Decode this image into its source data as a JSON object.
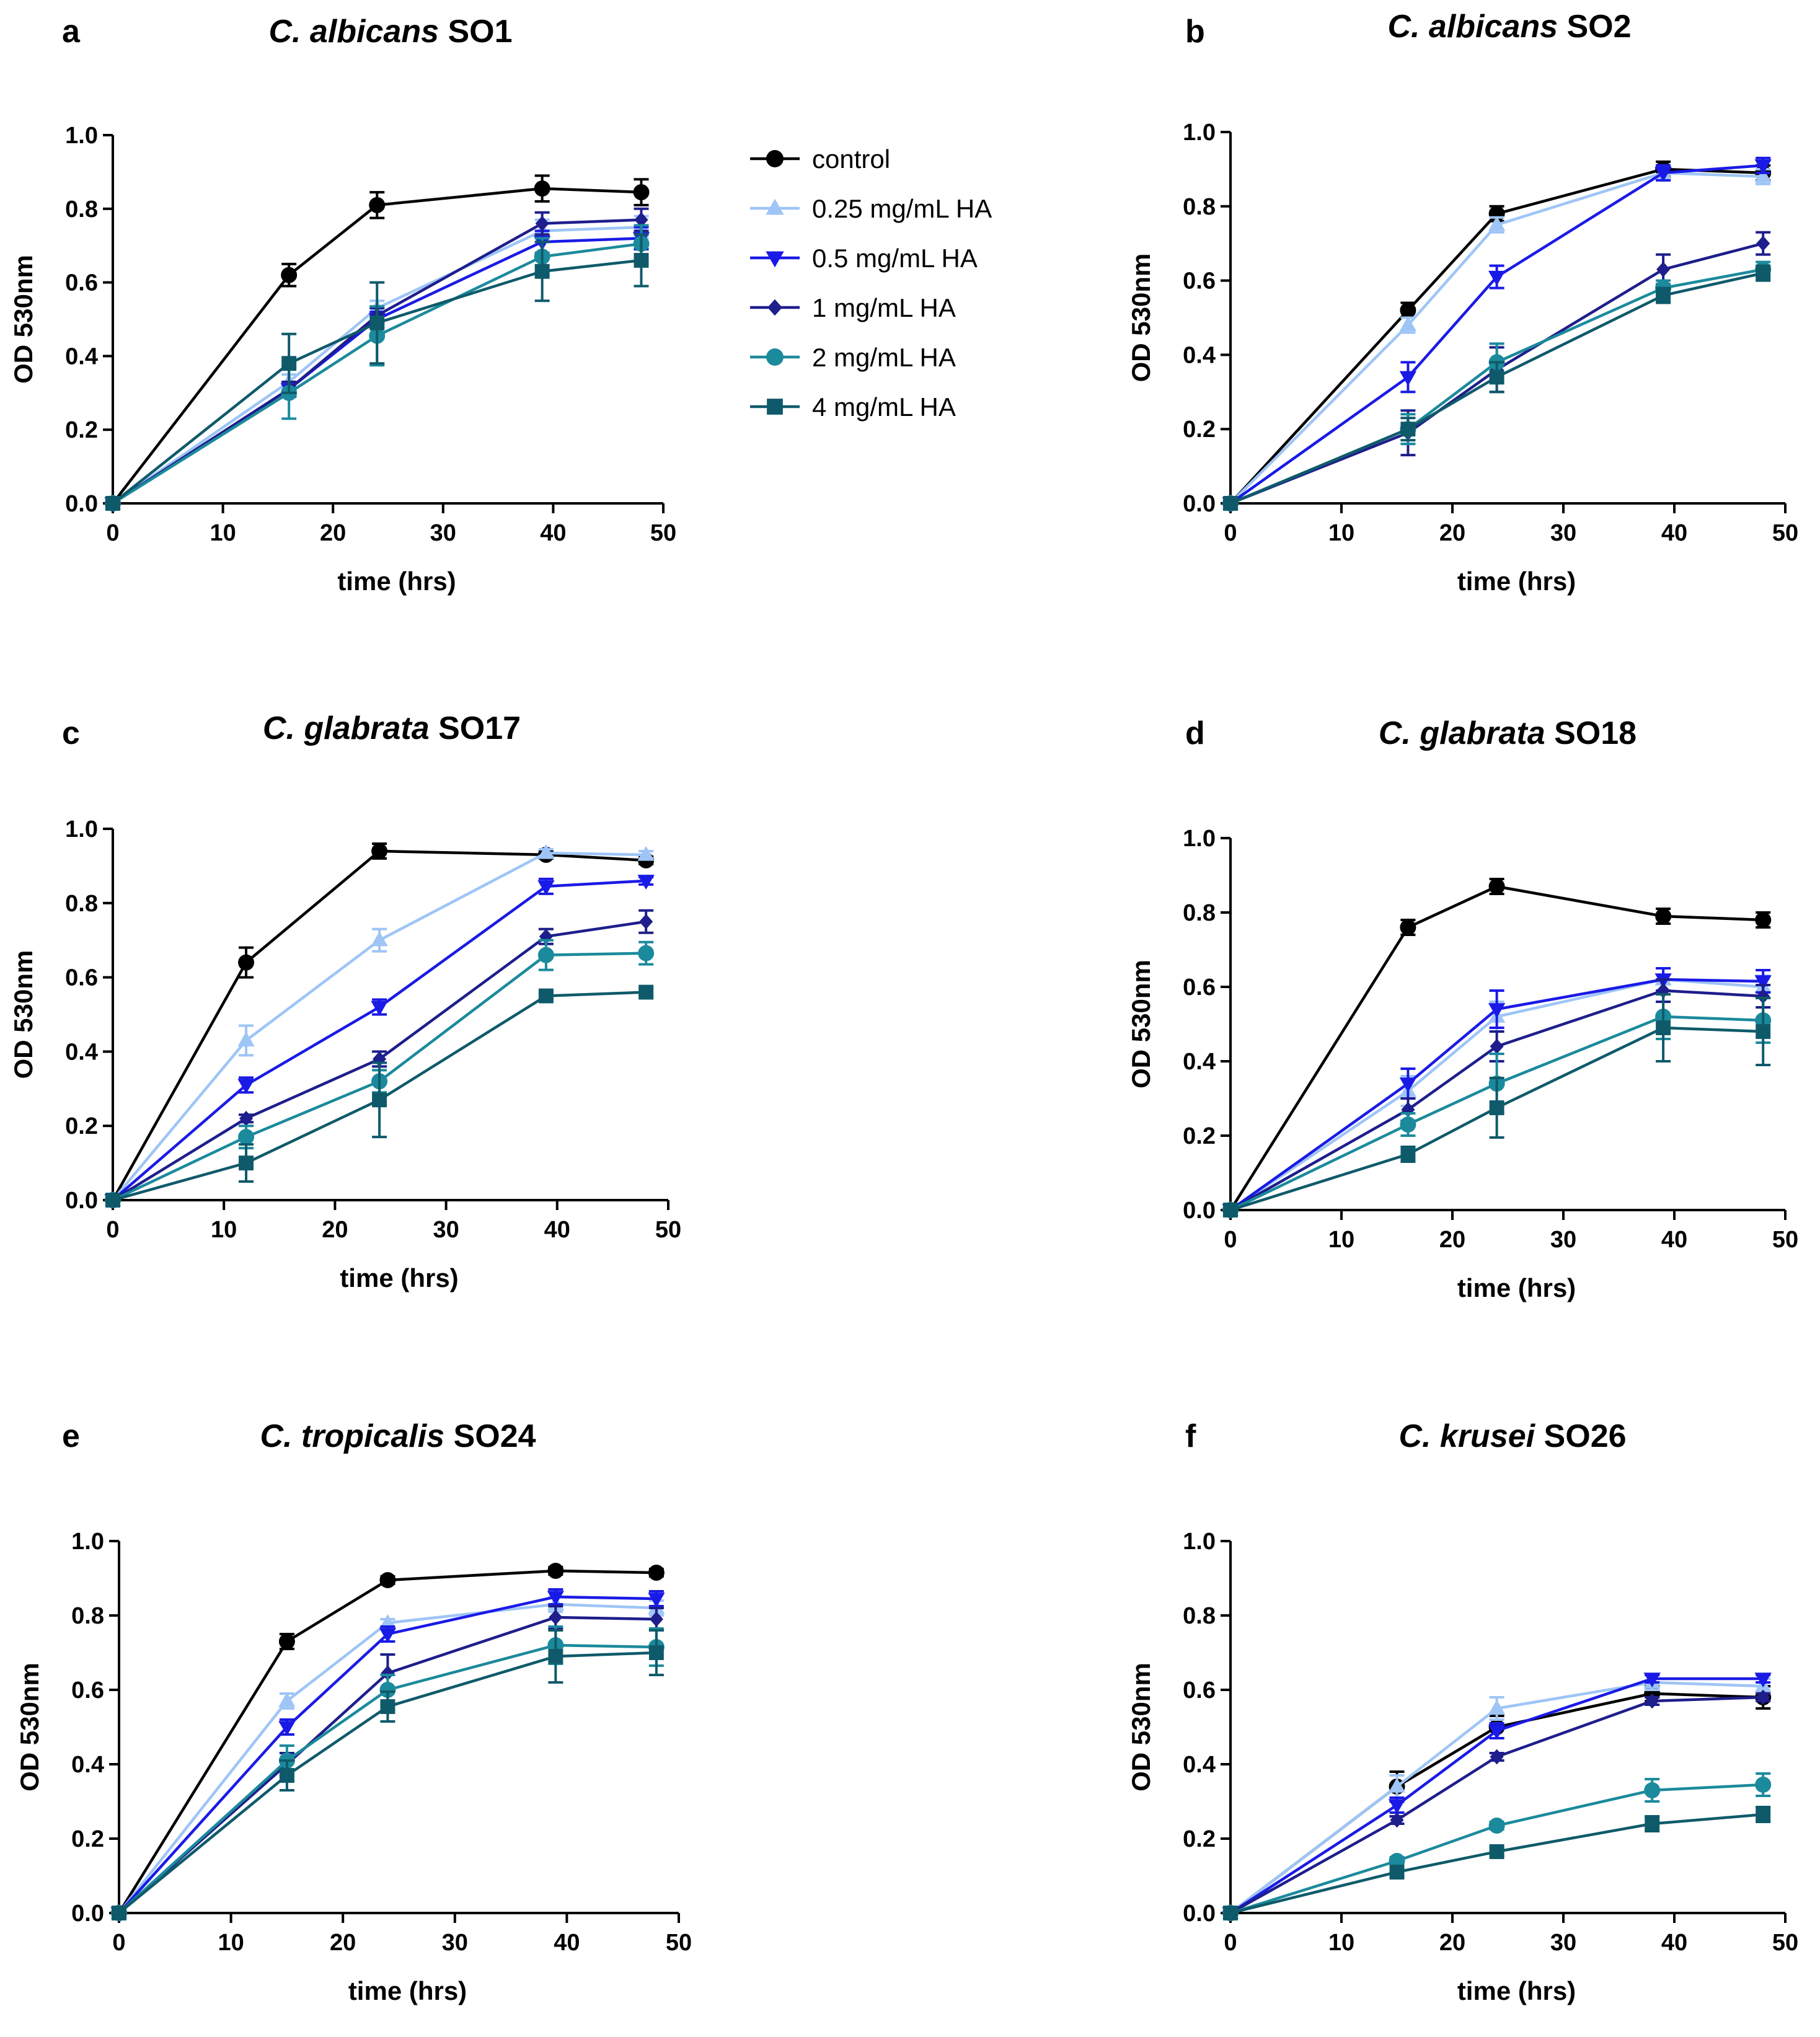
{
  "figure": {
    "legend": {
      "entries": [
        {
          "label": "control",
          "color": "#000000",
          "marker": "circle"
        },
        {
          "label": "0.25 mg/mL HA",
          "color": "#9ec5f6",
          "marker": "triangle-up"
        },
        {
          "label": "0.5 mg/mL HA",
          "color": "#1a1ae6",
          "marker": "triangle-down"
        },
        {
          "label": "1 mg/mL HA",
          "color": "#1e1e8c",
          "marker": "diamond"
        },
        {
          "label": "2 mg/mL HA",
          "color": "#1b8a9c",
          "marker": "circle"
        },
        {
          "label": "4 mg/mL HA",
          "color": "#0f5a6a",
          "marker": "square"
        }
      ]
    }
  },
  "chart_data": [
    {
      "id": "a",
      "type": "line",
      "letter": "a",
      "title_italic": "C. albicans",
      "title_rest": " SO1",
      "xlabel": "time (hrs)",
      "ylabel": "OD 530nm",
      "xlim": [
        0,
        50
      ],
      "ylim": [
        0,
        1.0
      ],
      "xticks": [
        "0",
        "10",
        "20",
        "30",
        "40",
        "50"
      ],
      "yticks": [
        "0.0",
        "0.2",
        "0.4",
        "0.6",
        "0.8",
        "1.0"
      ],
      "x": [
        0,
        16,
        24,
        39,
        48
      ],
      "series": [
        {
          "name": "control",
          "values": [
            0,
            0.62,
            0.81,
            0.855,
            0.845
          ],
          "err": [
            0,
            0.03,
            0.035,
            0.035,
            0.035
          ]
        },
        {
          "name": "0.25 mg/mL HA",
          "values": [
            0,
            0.33,
            0.53,
            0.74,
            0.75
          ],
          "err": [
            0,
            0.02,
            0.02,
            0.03,
            0.03
          ]
        },
        {
          "name": "0.5 mg/mL HA",
          "values": [
            0,
            0.31,
            0.5,
            0.71,
            0.72
          ],
          "err": [
            0,
            0.02,
            0.02,
            0.03,
            0.03
          ]
        },
        {
          "name": "1 mg/mL HA",
          "values": [
            0,
            0.31,
            0.51,
            0.76,
            0.77
          ],
          "err": [
            0,
            0.02,
            0.02,
            0.03,
            0.03
          ]
        },
        {
          "name": "2 mg/mL HA",
          "values": [
            0,
            0.3,
            0.455,
            0.67,
            0.705
          ],
          "err": [
            0,
            0.07,
            0.08,
            0.05,
            0.05
          ]
        },
        {
          "name": "4 mg/mL HA",
          "values": [
            0,
            0.38,
            0.49,
            0.63,
            0.66
          ],
          "err": [
            0,
            0.08,
            0.11,
            0.08,
            0.07
          ]
        }
      ]
    },
    {
      "id": "b",
      "type": "line",
      "letter": "b",
      "title_italic": "C. albicans",
      "title_rest": " SO2",
      "xlabel": "time (hrs)",
      "ylabel": "OD 530nm",
      "xlim": [
        0,
        50
      ],
      "ylim": [
        0,
        1.0
      ],
      "xticks": [
        "0",
        "10",
        "20",
        "30",
        "40",
        "50"
      ],
      "yticks": [
        "0.0",
        "0.2",
        "0.4",
        "0.6",
        "0.8",
        "1.0"
      ],
      "x": [
        0,
        16,
        24,
        39,
        48
      ],
      "series": [
        {
          "name": "control",
          "values": [
            0,
            0.52,
            0.78,
            0.9,
            0.89
          ],
          "err": [
            0,
            0.02,
            0.02,
            0.02,
            0.02
          ]
        },
        {
          "name": "0.25 mg/mL HA",
          "values": [
            0,
            0.48,
            0.75,
            0.89,
            0.88
          ],
          "err": [
            0,
            0.02,
            0.02,
            0.02,
            0.02
          ]
        },
        {
          "name": "0.5 mg/mL HA",
          "values": [
            0,
            0.34,
            0.61,
            0.89,
            0.91
          ],
          "err": [
            0,
            0.04,
            0.03,
            0.02,
            0.02
          ]
        },
        {
          "name": "1 mg/mL HA",
          "values": [
            0,
            0.19,
            0.36,
            0.63,
            0.7
          ],
          "err": [
            0,
            0.06,
            0.06,
            0.04,
            0.03
          ]
        },
        {
          "name": "2 mg/mL HA",
          "values": [
            0,
            0.2,
            0.38,
            0.58,
            0.63
          ],
          "err": [
            0,
            0.04,
            0.05,
            0.02,
            0.02
          ]
        },
        {
          "name": "4 mg/mL HA",
          "values": [
            0,
            0.2,
            0.34,
            0.56,
            0.62
          ],
          "err": [
            0,
            0.03,
            0.04,
            0.02,
            0.02
          ]
        }
      ]
    },
    {
      "id": "c",
      "type": "line",
      "letter": "c",
      "title_italic": "C. glabrata",
      "title_rest": " SO17",
      "xlabel": "time (hrs)",
      "ylabel": "OD 530nm",
      "xlim": [
        0,
        50
      ],
      "ylim": [
        0,
        1.0
      ],
      "xticks": [
        "0",
        "10",
        "20",
        "30",
        "40",
        "50"
      ],
      "yticks": [
        "0.0",
        "0.2",
        "0.4",
        "0.6",
        "0.8",
        "1.0"
      ],
      "x": [
        0,
        12,
        24,
        39,
        48
      ],
      "series": [
        {
          "name": "control",
          "values": [
            0,
            0.64,
            0.94,
            0.93,
            0.915
          ],
          "err": [
            0,
            0.04,
            0.02,
            0.01,
            0.01
          ]
        },
        {
          "name": "0.25 mg/mL HA",
          "values": [
            0,
            0.43,
            0.7,
            0.935,
            0.93
          ],
          "err": [
            0,
            0.04,
            0.03,
            0.01,
            0.01
          ]
        },
        {
          "name": "0.5 mg/mL HA",
          "values": [
            0,
            0.31,
            0.52,
            0.845,
            0.86
          ],
          "err": [
            0,
            0.02,
            0.02,
            0.02,
            0.01
          ]
        },
        {
          "name": "1 mg/mL HA",
          "values": [
            0,
            0.22,
            0.38,
            0.71,
            0.75
          ],
          "err": [
            0,
            0.01,
            0.02,
            0.02,
            0.03
          ]
        },
        {
          "name": "2 mg/mL HA",
          "values": [
            0,
            0.17,
            0.32,
            0.66,
            0.665
          ],
          "err": [
            0,
            0.03,
            0.03,
            0.04,
            0.03
          ]
        },
        {
          "name": "4 mg/mL HA",
          "values": [
            0,
            0.1,
            0.27,
            0.55,
            0.56
          ],
          "err": [
            0,
            0.05,
            0.1,
            0.01,
            0.01
          ]
        }
      ]
    },
    {
      "id": "d",
      "type": "line",
      "letter": "d",
      "title_italic": "C. glabrata",
      "title_rest": " SO18",
      "xlabel": "time (hrs)",
      "ylabel": "OD 530nm",
      "xlim": [
        0,
        50
      ],
      "ylim": [
        0,
        1.0
      ],
      "xticks": [
        "0",
        "10",
        "20",
        "30",
        "40",
        "50"
      ],
      "yticks": [
        "0.0",
        "0.2",
        "0.4",
        "0.6",
        "0.8",
        "1.0"
      ],
      "x": [
        0,
        16,
        24,
        39,
        48
      ],
      "series": [
        {
          "name": "control",
          "values": [
            0,
            0.76,
            0.87,
            0.79,
            0.78
          ],
          "err": [
            0,
            0.02,
            0.02,
            0.02,
            0.02
          ]
        },
        {
          "name": "0.25 mg/mL HA",
          "values": [
            0,
            0.32,
            0.52,
            0.62,
            0.6
          ],
          "err": [
            0,
            0.04,
            0.04,
            0.03,
            0.03
          ]
        },
        {
          "name": "0.5 mg/mL HA",
          "values": [
            0,
            0.34,
            0.54,
            0.62,
            0.615
          ],
          "err": [
            0,
            0.04,
            0.05,
            0.03,
            0.03
          ]
        },
        {
          "name": "1 mg/mL HA",
          "values": [
            0,
            0.27,
            0.44,
            0.59,
            0.575
          ],
          "err": [
            0,
            0.03,
            0.04,
            0.03,
            0.03
          ]
        },
        {
          "name": "2 mg/mL HA",
          "values": [
            0,
            0.23,
            0.34,
            0.52,
            0.51
          ],
          "err": [
            0,
            0.03,
            0.08,
            0.06,
            0.06
          ]
        },
        {
          "name": "4 mg/mL HA",
          "values": [
            0,
            0.15,
            0.275,
            0.49,
            0.48
          ],
          "err": [
            0,
            0.02,
            0.08,
            0.09,
            0.09
          ]
        }
      ]
    },
    {
      "id": "e",
      "type": "line",
      "letter": "e",
      "title_italic": "C. tropicalis",
      "title_rest": " SO24",
      "xlabel": "time (hrs)",
      "ylabel": "OD 530nm",
      "xlim": [
        0,
        50
      ],
      "ylim": [
        0,
        1.0
      ],
      "xticks": [
        "0",
        "10",
        "20",
        "30",
        "40",
        "50"
      ],
      "yticks": [
        "0.0",
        "0.2",
        "0.4",
        "0.6",
        "0.8",
        "1.0"
      ],
      "x": [
        0,
        15,
        24,
        39,
        48
      ],
      "series": [
        {
          "name": "control",
          "values": [
            0,
            0.73,
            0.895,
            0.92,
            0.915
          ],
          "err": [
            0,
            0.02,
            0.01,
            0.01,
            0.01
          ]
        },
        {
          "name": "0.25 mg/mL HA",
          "values": [
            0,
            0.57,
            0.78,
            0.83,
            0.82
          ],
          "err": [
            0,
            0.02,
            0.01,
            0.02,
            0.02
          ]
        },
        {
          "name": "0.5 mg/mL HA",
          "values": [
            0,
            0.5,
            0.75,
            0.85,
            0.845
          ],
          "err": [
            0,
            0.02,
            0.02,
            0.02,
            0.02
          ]
        },
        {
          "name": "1 mg/mL HA",
          "values": [
            0,
            0.4,
            0.645,
            0.795,
            0.79
          ],
          "err": [
            0,
            0.03,
            0.05,
            0.03,
            0.03
          ]
        },
        {
          "name": "2 mg/mL HA",
          "values": [
            0,
            0.41,
            0.6,
            0.72,
            0.715
          ],
          "err": [
            0,
            0.04,
            0.04,
            0.05,
            0.05
          ]
        },
        {
          "name": "4 mg/mL HA",
          "values": [
            0,
            0.37,
            0.555,
            0.69,
            0.7
          ],
          "err": [
            0,
            0.04,
            0.04,
            0.07,
            0.06
          ]
        }
      ]
    },
    {
      "id": "f",
      "type": "line",
      "letter": "f",
      "title_italic": "C. krusei",
      "title_rest": " SO26",
      "xlabel": "time (hrs)",
      "ylabel": "OD 530nm",
      "xlim": [
        0,
        50
      ],
      "ylim": [
        0,
        1.0
      ],
      "xticks": [
        "0",
        "10",
        "20",
        "30",
        "40",
        "50"
      ],
      "yticks": [
        "0.0",
        "0.2",
        "0.4",
        "0.6",
        "0.8",
        "1.0"
      ],
      "x": [
        0,
        15,
        24,
        38,
        48
      ],
      "series": [
        {
          "name": "control",
          "values": [
            0,
            0.34,
            0.5,
            0.59,
            0.58
          ],
          "err": [
            0,
            0.04,
            0.03,
            0.02,
            0.03
          ]
        },
        {
          "name": "0.25 mg/mL HA",
          "values": [
            0,
            0.34,
            0.55,
            0.62,
            0.61
          ],
          "err": [
            0,
            0.03,
            0.03,
            0.02,
            0.02
          ]
        },
        {
          "name": "0.5 mg/mL HA",
          "values": [
            0,
            0.29,
            0.49,
            0.63,
            0.63
          ],
          "err": [
            0,
            0.02,
            0.02,
            0.01,
            0.01
          ]
        },
        {
          "name": "1 mg/mL HA",
          "values": [
            0,
            0.25,
            0.42,
            0.57,
            0.58
          ],
          "err": [
            0,
            0.01,
            0.01,
            0.01,
            0.01
          ]
        },
        {
          "name": "2 mg/mL HA",
          "values": [
            0,
            0.14,
            0.235,
            0.33,
            0.345
          ],
          "err": [
            0,
            0.01,
            0.01,
            0.03,
            0.03
          ]
        },
        {
          "name": "4 mg/mL HA",
          "values": [
            0,
            0.11,
            0.165,
            0.24,
            0.265
          ],
          "err": [
            0,
            0.01,
            0.01,
            0.02,
            0.02
          ]
        }
      ]
    }
  ]
}
